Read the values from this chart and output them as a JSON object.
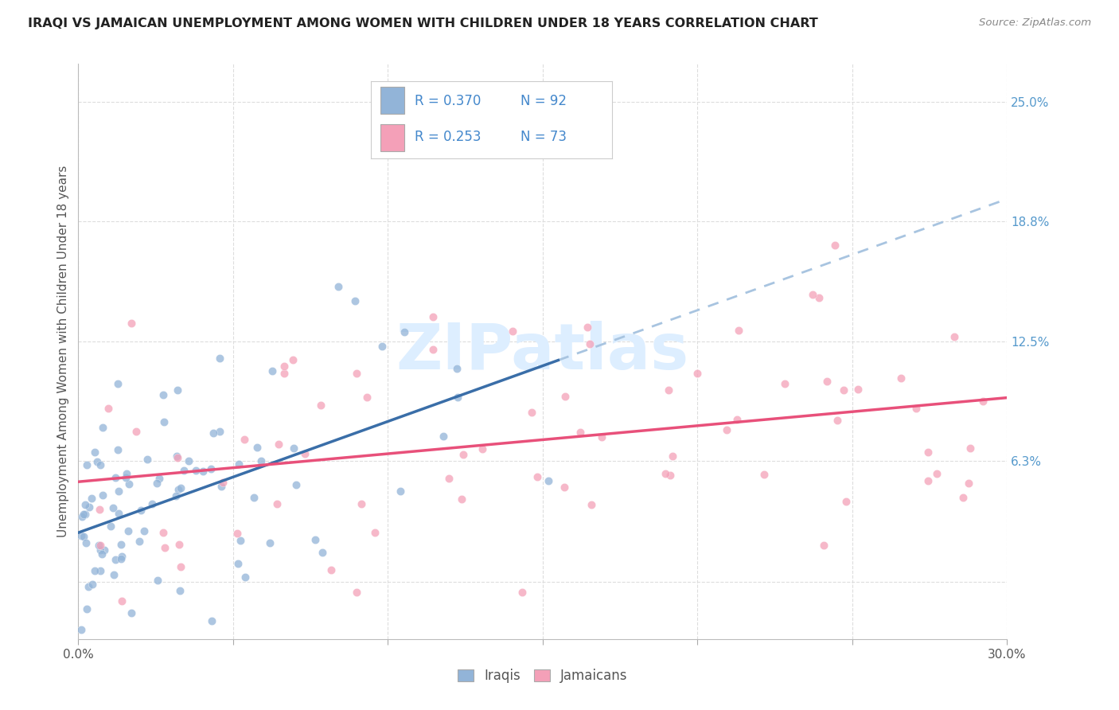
{
  "title": "IRAQI VS JAMAICAN UNEMPLOYMENT AMONG WOMEN WITH CHILDREN UNDER 18 YEARS CORRELATION CHART",
  "source": "Source: ZipAtlas.com",
  "ylabel": "Unemployment Among Women with Children Under 18 years",
  "xlim": [
    0.0,
    0.3
  ],
  "ylim": [
    -0.03,
    0.27
  ],
  "xtick_positions": [
    0.0,
    0.05,
    0.1,
    0.15,
    0.2,
    0.25,
    0.3
  ],
  "xtick_labels": [
    "0.0%",
    "",
    "",
    "",
    "",
    "",
    "30.0%"
  ],
  "ytick_positions": [
    0.0,
    0.063,
    0.125,
    0.188,
    0.25
  ],
  "ytick_labels": [
    "",
    "6.3%",
    "12.5%",
    "18.8%",
    "25.0%"
  ],
  "R_iraqis": 0.37,
  "N_iraqis": 92,
  "R_jamaicans": 0.253,
  "N_jamaicans": 73,
  "iraqis_color": "#92B4D8",
  "jamaicans_color": "#F4A0B8",
  "iraqis_line_color": "#3A6EA8",
  "jamaicans_line_color": "#E8507A",
  "iraqis_dashed_color": "#A8C4E0",
  "ytick_color": "#5599CC",
  "watermark_color": "#DDEEFF",
  "legend_label_iraqis": "Iraqis",
  "legend_label_jamaicans": "Jamaicans",
  "legend_text_color": "#4488CC",
  "iraqis_seed": 42,
  "jamaicans_seed": 99
}
